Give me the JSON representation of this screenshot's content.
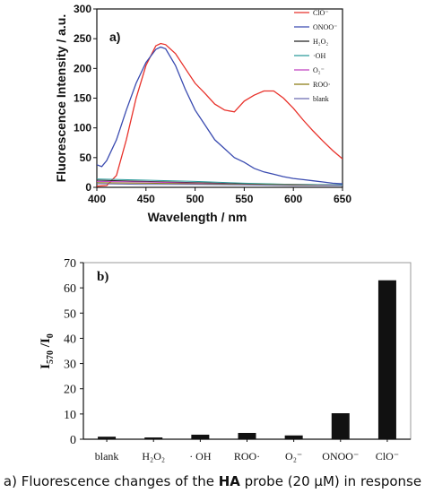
{
  "caption": {
    "prefix": "a) Fluorescence changes of the ",
    "probe": "HA",
    "suffix": " probe (20 μM) in response"
  },
  "chart_data": [
    {
      "type": "line",
      "panel_label": "a)",
      "xlabel": "Wavelength / nm",
      "ylabel": "Fluorescence Intensity / a.u.",
      "xlim": [
        400,
        650
      ],
      "ylim": [
        0,
        300
      ],
      "xticks": [
        400,
        450,
        500,
        550,
        600,
        650
      ],
      "yticks": [
        0,
        50,
        100,
        150,
        200,
        250,
        300
      ],
      "grid": false,
      "legend_position": "right, outside plot",
      "series": [
        {
          "name": "ClO⁻",
          "color": "#e8312a",
          "x": [
            400,
            410,
            420,
            430,
            440,
            450,
            460,
            465,
            470,
            480,
            490,
            500,
            510,
            520,
            530,
            540,
            550,
            560,
            570,
            580,
            590,
            600,
            610,
            620,
            630,
            640,
            650
          ],
          "y": [
            2,
            3,
            20,
            80,
            150,
            205,
            238,
            242,
            240,
            225,
            200,
            175,
            158,
            140,
            130,
            127,
            145,
            155,
            162,
            162,
            150,
            133,
            113,
            95,
            78,
            62,
            48
          ]
        },
        {
          "name": "ONOO⁻",
          "color": "#3a4bb0",
          "x": [
            400,
            405,
            410,
            420,
            430,
            440,
            450,
            460,
            465,
            470,
            480,
            490,
            500,
            510,
            520,
            530,
            540,
            550,
            560,
            570,
            580,
            590,
            600,
            610,
            620,
            630,
            640,
            650
          ],
          "y": [
            38,
            35,
            45,
            80,
            130,
            175,
            210,
            232,
            236,
            233,
            205,
            165,
            130,
            105,
            80,
            65,
            50,
            42,
            32,
            26,
            22,
            18,
            15,
            13,
            11,
            9,
            7,
            6
          ]
        },
        {
          "name": "H₂O₂",
          "color": "#222222",
          "x": [
            400,
            450,
            500,
            550,
            600,
            650
          ],
          "y": [
            12,
            10,
            8,
            6,
            5,
            4
          ]
        },
        {
          "name": "·OH",
          "color": "#2a9a9a",
          "x": [
            400,
            450,
            500,
            550,
            600,
            650
          ],
          "y": [
            14,
            12,
            10,
            7,
            5,
            4
          ]
        },
        {
          "name": "O₂⁻",
          "color": "#c040c0",
          "x": [
            400,
            450,
            500,
            550,
            600,
            650
          ],
          "y": [
            10,
            9,
            7,
            5,
            4,
            3
          ]
        },
        {
          "name": "ROO·",
          "color": "#8a7a10",
          "x": [
            400,
            450,
            500,
            550,
            600,
            650
          ],
          "y": [
            8,
            7,
            6,
            5,
            4,
            3
          ]
        },
        {
          "name": "blank",
          "color": "#6a6ab0",
          "x": [
            400,
            450,
            500,
            550,
            600,
            650
          ],
          "y": [
            6,
            5,
            5,
            4,
            3,
            3
          ]
        }
      ]
    },
    {
      "type": "bar",
      "panel_label": "b)",
      "xlabel": "",
      "ylabel": "I570 /I0",
      "ylabel_parts": {
        "main": "I",
        "sub1": "570",
        "mid": " /I",
        "sub2": "0"
      },
      "ylim": [
        0,
        70
      ],
      "yticks": [
        0,
        10,
        20,
        30,
        40,
        50,
        60,
        70
      ],
      "grid": false,
      "bar_color": "#111111",
      "categories": [
        "blank",
        "H₂O₂",
        "· OH",
        "ROO·",
        "O₂⁻",
        "ONOO⁻",
        "ClO⁻"
      ],
      "values": [
        1.0,
        0.7,
        1.8,
        2.5,
        1.5,
        10.3,
        63.0
      ]
    }
  ]
}
